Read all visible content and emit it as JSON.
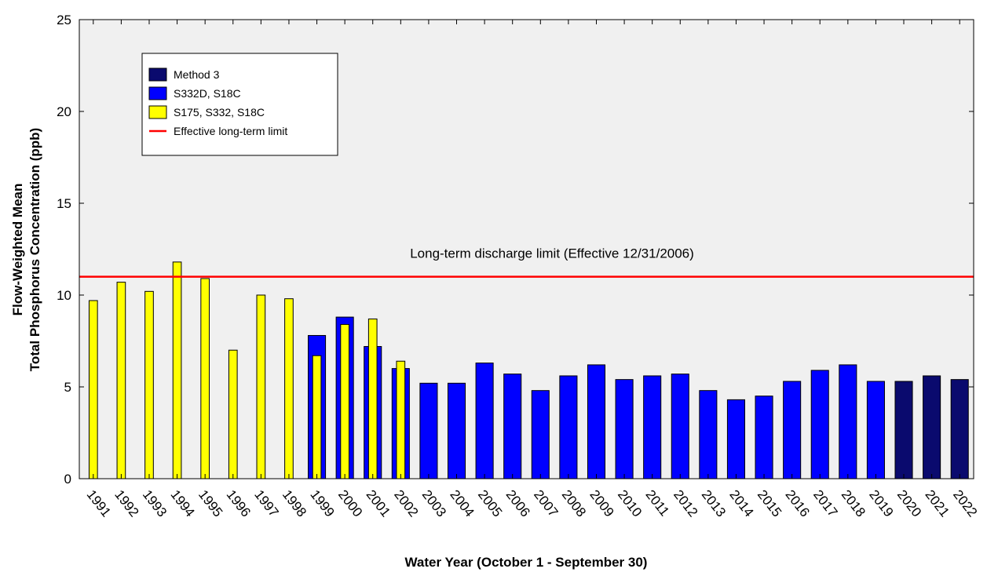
{
  "chart_data": {
    "type": "bar",
    "x_label": "Water Year (October 1 - September 30)",
    "y_label": [
      "Flow-Weighted Mean",
      "Total Phosphorus Concentration (ppb)"
    ],
    "categories": [
      "1991",
      "1992",
      "1993",
      "1994",
      "1995",
      "1996",
      "1997",
      "1998",
      "1999",
      "2000",
      "2001",
      "2002",
      "2003",
      "2004",
      "2005",
      "2006",
      "2007",
      "2008",
      "2009",
      "2010",
      "2011",
      "2012",
      "2013",
      "2014",
      "2015",
      "2016",
      "2017",
      "2018",
      "2019",
      "2020",
      "2021",
      "2022"
    ],
    "series": [
      {
        "name": "Method 3",
        "color": "#0a0a6e",
        "bar_width": "wide",
        "values": [
          null,
          null,
          null,
          null,
          null,
          null,
          null,
          null,
          null,
          null,
          null,
          null,
          null,
          null,
          null,
          null,
          null,
          null,
          null,
          null,
          null,
          null,
          null,
          null,
          null,
          null,
          null,
          null,
          null,
          5.3,
          5.6,
          5.4
        ]
      },
      {
        "name": "S332D, S18C",
        "color": "#0000ff",
        "bar_width": "wide",
        "values": [
          null,
          null,
          null,
          null,
          null,
          null,
          null,
          null,
          7.8,
          8.8,
          7.2,
          6.0,
          5.2,
          5.2,
          6.3,
          5.7,
          4.8,
          5.6,
          6.2,
          5.4,
          5.6,
          5.7,
          4.8,
          4.3,
          4.5,
          5.3,
          5.9,
          6.2,
          5.3,
          null,
          null,
          null
        ]
      },
      {
        "name": "S175, S332, S18C",
        "color": "#ffff00",
        "bar_width": "narrow",
        "values": [
          9.7,
          10.7,
          10.2,
          11.8,
          10.9,
          7.0,
          10.0,
          9.8,
          6.7,
          8.4,
          8.7,
          6.4,
          null,
          null,
          null,
          null,
          null,
          null,
          null,
          null,
          null,
          null,
          null,
          null,
          null,
          null,
          null,
          null,
          null,
          null,
          null,
          null
        ]
      }
    ],
    "reference_line": {
      "name": "Effective long-term limit",
      "value": 11,
      "color": "#ff0000",
      "annotation": "Long-term discharge limit (Effective 12/31/2006)"
    },
    "ylim": [
      0,
      25
    ],
    "yticks": [
      0,
      5,
      10,
      15,
      20,
      25
    ],
    "legend": "upper left"
  }
}
